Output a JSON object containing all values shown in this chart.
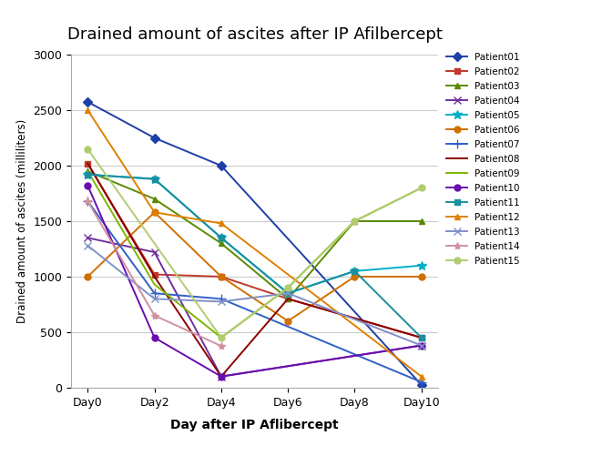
{
  "title": "Drained amount of ascites after IP Afilbercept",
  "xlabel": "Day after IP Aflibercept",
  "ylabel": "Drained amount of ascites (milliliters)",
  "x_labels": [
    "Day0",
    "Day2",
    "Day4",
    "Day6",
    "Day8",
    "Day10"
  ],
  "x_values": [
    0,
    2,
    4,
    6,
    8,
    10
  ],
  "ylim": [
    0,
    3000
  ],
  "yticks": [
    0,
    500,
    1000,
    1500,
    2000,
    2500,
    3000
  ],
  "patients": {
    "Patient01": {
      "values": [
        2575,
        2250,
        2000,
        null,
        null,
        25
      ],
      "color": "#1f3fa8",
      "marker": "D",
      "markersize": 5
    },
    "Patient02": {
      "values": [
        2020,
        1020,
        1000,
        800,
        null,
        450
      ],
      "color": "#c0392b",
      "marker": "s",
      "markersize": 5
    },
    "Patient03": {
      "values": [
        1950,
        1700,
        1300,
        800,
        1500,
        1500
      ],
      "color": "#5a8a00",
      "marker": "^",
      "markersize": 5
    },
    "Patient04": {
      "values": [
        1350,
        1220,
        100,
        null,
        null,
        380
      ],
      "color": "#7030a0",
      "marker": "x",
      "markersize": 6
    },
    "Patient05": {
      "values": [
        1920,
        1880,
        1350,
        850,
        1050,
        1100
      ],
      "color": "#00b0c8",
      "marker": "*",
      "markersize": 7
    },
    "Patient06": {
      "values": [
        1000,
        1580,
        1000,
        600,
        1000,
        1000
      ],
      "color": "#d07000",
      "marker": "o",
      "markersize": 5
    },
    "Patient07": {
      "values": [
        1680,
        850,
        800,
        null,
        null,
        50
      ],
      "color": "#3060c8",
      "marker": "+",
      "markersize": 7
    },
    "Patient08": {
      "values": [
        2020,
        1000,
        100,
        800,
        null,
        450
      ],
      "color": "#8b0000",
      "marker": "None",
      "markersize": 5
    },
    "Patient09": {
      "values": [
        1950,
        930,
        450,
        900,
        1500,
        1800
      ],
      "color": "#7db600",
      "marker": "None",
      "markersize": 5
    },
    "Patient10": {
      "values": [
        1820,
        450,
        100,
        null,
        null,
        380
      ],
      "color": "#6a0dad",
      "marker": "o",
      "markersize": 5
    },
    "Patient11": {
      "values": [
        1920,
        1880,
        1350,
        850,
        1050,
        450
      ],
      "color": "#1a8fa0",
      "marker": "s",
      "markersize": 5
    },
    "Patient12": {
      "values": [
        2500,
        1580,
        1480,
        null,
        null,
        100
      ],
      "color": "#e08000",
      "marker": "^",
      "markersize": 5
    },
    "Patient13": {
      "values": [
        1280,
        800,
        775,
        850,
        null,
        380
      ],
      "color": "#8090c8",
      "marker": "x",
      "markersize": 6
    },
    "Patient14": {
      "values": [
        1680,
        650,
        375,
        null,
        null,
        null
      ],
      "color": "#d090a0",
      "marker": "*",
      "markersize": 6
    },
    "Patient15": {
      "values": [
        2150,
        null,
        450,
        900,
        1500,
        1800
      ],
      "color": "#b0cc70",
      "marker": "o",
      "markersize": 5
    }
  }
}
